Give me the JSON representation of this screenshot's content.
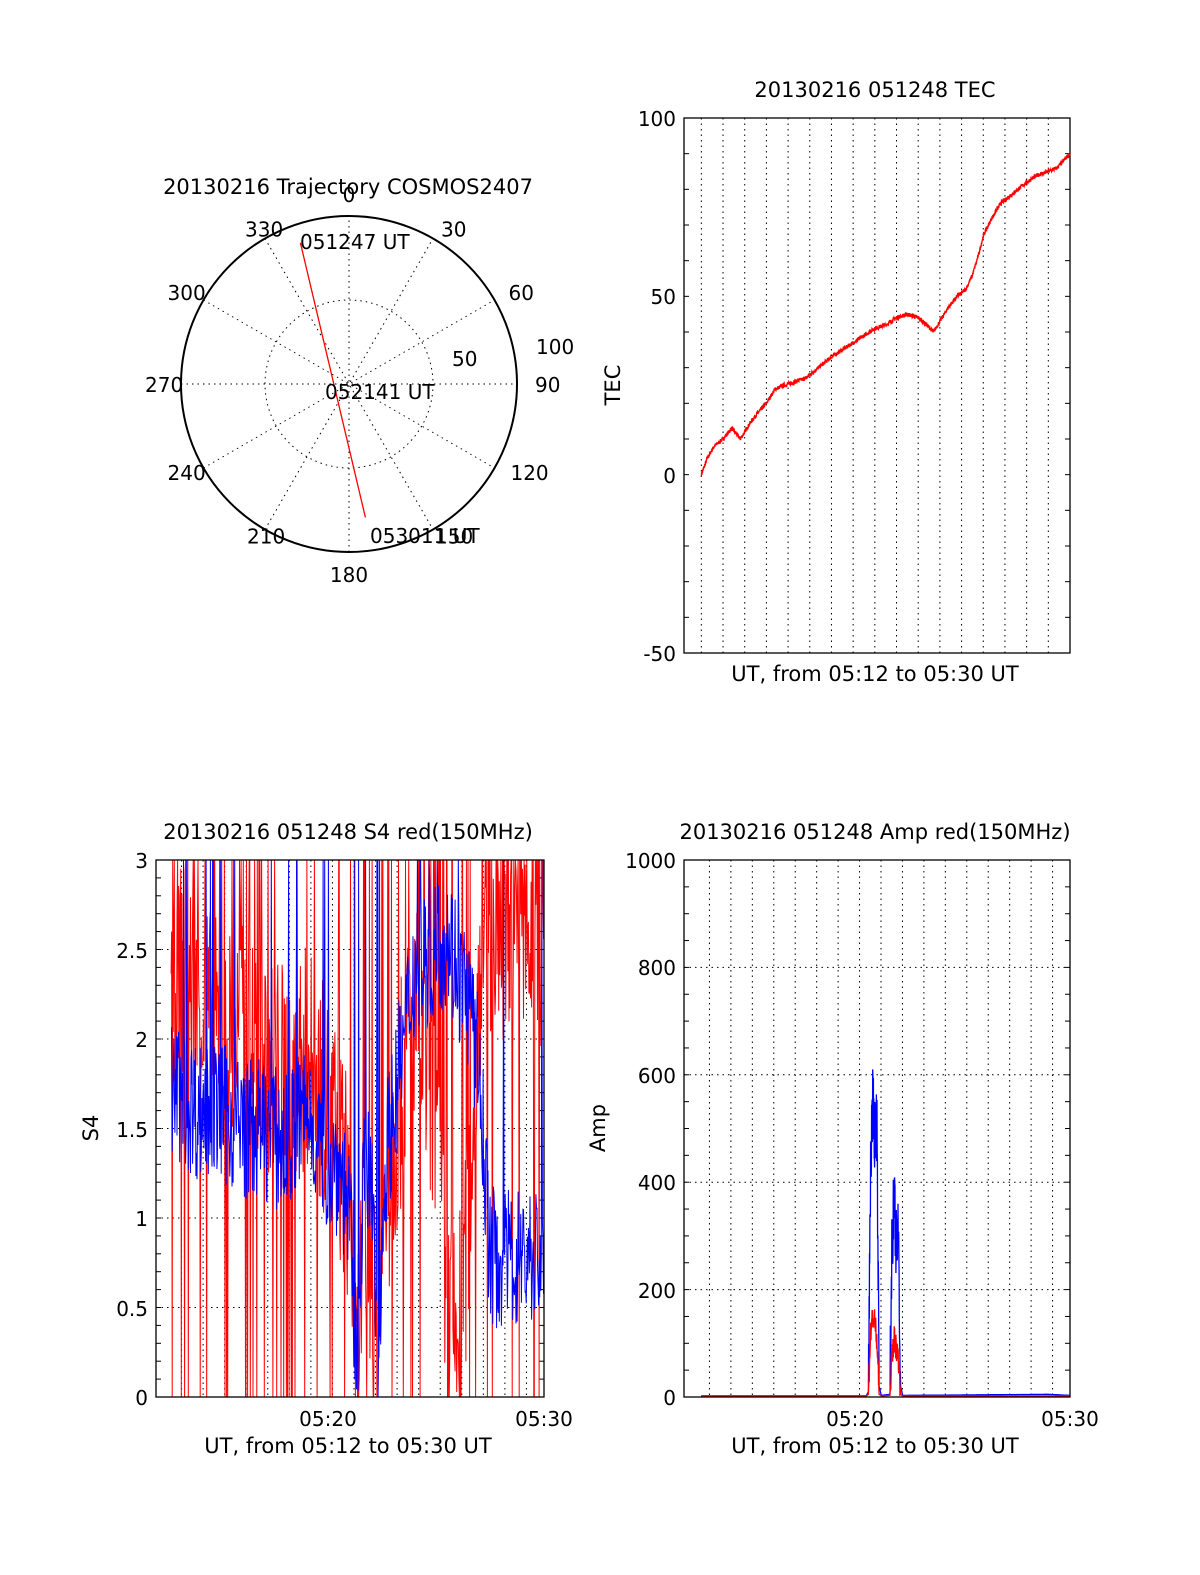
{
  "colors": {
    "red": "#ff0000",
    "blue": "#0000ff",
    "axis": "#000000"
  },
  "chart_data": [
    {
      "id": "trajectory",
      "type": "polar",
      "title": "20130216 Trajectory COSMOS2407",
      "angle_labels": [
        "0",
        "30",
        "60",
        "90",
        "120",
        "150",
        "180",
        "210",
        "240",
        "270",
        "300",
        "330"
      ],
      "radial_labels": [
        "50",
        "100"
      ],
      "time_labels": {
        "start": "051247 UT",
        "middle": "052141 UT",
        "end": "053011 UT"
      },
      "track": {
        "series_color": "red",
        "points": [
          {
            "azimuth_deg": 341,
            "elevation_deg": 10
          },
          {
            "azimuth_deg": 330,
            "elevation_deg": 45
          },
          {
            "azimuth_deg": 250,
            "elevation_deg": 85
          },
          {
            "azimuth_deg": 170,
            "elevation_deg": 48
          },
          {
            "azimuth_deg": 173,
            "elevation_deg": 18
          }
        ]
      },
      "grid": "dotted"
    },
    {
      "id": "tec",
      "type": "line",
      "title": "20130216 051248 TEC",
      "xlabel": "UT, from 05:12 to 05:30 UT",
      "ylabel": "TEC",
      "x_range_min": [
        13.0,
        30.0
      ],
      "ylim": [
        -50,
        100
      ],
      "yticks": [
        "-50",
        "0",
        "50",
        "100"
      ],
      "xticks": [],
      "grid": "dotted vertical every minute",
      "series": [
        {
          "color": "red",
          "x_min": [
            13.0,
            13.3,
            13.6,
            14.0,
            14.4,
            14.8,
            15.3,
            15.7,
            16.0,
            16.4,
            16.8,
            17.3,
            17.8,
            18.2,
            18.6,
            19.0,
            19.5,
            20.0,
            20.5,
            21.0,
            21.5,
            22.0,
            22.5,
            23.0,
            23.4,
            23.7,
            24.0,
            24.4,
            24.8,
            25.2,
            25.5,
            25.8,
            26.0,
            26.4,
            26.8,
            27.2,
            27.6,
            28.0,
            28.5,
            29.0,
            29.4,
            29.7,
            30.0
          ],
          "y": [
            0,
            5,
            8,
            10,
            13,
            10,
            15,
            18,
            20,
            24,
            25,
            26,
            27,
            29,
            31,
            33,
            35,
            37,
            39,
            41,
            42,
            44,
            45,
            44,
            42,
            40,
            43,
            47,
            50,
            52,
            56,
            62,
            67,
            72,
            76,
            78,
            80,
            82,
            84,
            85,
            86,
            88,
            90
          ]
        }
      ]
    },
    {
      "id": "s4",
      "type": "line",
      "title": "20130216 051248 S4 red(150MHz)",
      "xlabel": "UT, from 05:12 to 05:30 UT",
      "ylabel": "S4",
      "x_range_min": [
        12.0,
        30.0
      ],
      "ylim": [
        0,
        3
      ],
      "yticks": [
        "0",
        "0.5",
        "1",
        "1.5",
        "2",
        "2.5",
        "3"
      ],
      "xticks": [
        {
          "at": 20,
          "label": "05:20"
        },
        {
          "at": 30,
          "label": "05:30"
        }
      ],
      "grid": "dotted",
      "series": [
        {
          "color": "red",
          "style": "noisy, frequent spikes to 0 and 3",
          "x_min": [
            12.0,
            13.0,
            14.0,
            15.0,
            16.0,
            17.0,
            18.0,
            19.0,
            20.0,
            20.5,
            21.0,
            21.3,
            21.6,
            22.0,
            22.3,
            22.6,
            23.0,
            24.0,
            25.0,
            25.5,
            26.0,
            26.5,
            27.0,
            28.0,
            29.0,
            30.0
          ],
          "y": [
            2.2,
            2.4,
            2.2,
            2.0,
            2.0,
            1.9,
            1.8,
            1.9,
            1.6,
            1.4,
            1.1,
            0.08,
            0.9,
            0.8,
            0.07,
            0.9,
            1.4,
            2.2,
            1.5,
            0.4,
            0.3,
            1.0,
            2.4,
            2.6,
            2.6,
            2.4
          ]
        },
        {
          "color": "blue",
          "style": "noisy",
          "x_min": [
            12.0,
            13.0,
            14.0,
            15.0,
            16.0,
            17.0,
            18.0,
            19.0,
            20.0,
            20.5,
            21.0,
            21.3,
            21.6,
            22.0,
            22.3,
            22.6,
            23.0,
            24.0,
            25.0,
            25.5,
            26.0,
            26.5,
            27.0,
            27.5,
            28.0,
            29.0,
            30.0
          ],
          "y": [
            1.8,
            1.7,
            1.6,
            1.6,
            1.5,
            1.5,
            1.4,
            1.6,
            1.3,
            1.3,
            1.0,
            0.1,
            1.2,
            1.2,
            0.1,
            1.3,
            1.6,
            2.4,
            2.5,
            2.6,
            2.4,
            2.2,
            1.8,
            0.8,
            0.75,
            0.8,
            0.78
          ]
        }
      ]
    },
    {
      "id": "amp",
      "type": "line",
      "title": "20130216 051248 Amp red(150MHz)",
      "xlabel": "UT, from 05:12 to 05:30 UT",
      "ylabel": "Amp",
      "x_range_min": [
        12.0,
        30.0
      ],
      "ylim": [
        0,
        1000
      ],
      "yticks": [
        "0",
        "200",
        "400",
        "600",
        "800",
        "1000"
      ],
      "xticks": [
        {
          "at": 20,
          "label": "05:20"
        },
        {
          "at": 30,
          "label": "05:30"
        }
      ],
      "grid": "dotted",
      "series": [
        {
          "color": "red",
          "x_min": [
            12.0,
            20.5,
            20.6,
            20.7,
            20.8,
            20.9,
            21.0,
            21.1,
            21.2,
            21.6,
            21.7,
            21.8,
            21.9,
            22.0,
            22.1,
            22.2,
            30.0
          ],
          "y": [
            2,
            2,
            5,
            120,
            150,
            140,
            100,
            5,
            2,
            3,
            80,
            110,
            90,
            75,
            5,
            2,
            2
          ]
        },
        {
          "color": "blue",
          "x_min": [
            12.0,
            20.5,
            20.6,
            20.7,
            20.8,
            20.9,
            21.0,
            21.1,
            21.2,
            21.6,
            21.7,
            21.8,
            21.9,
            22.0,
            22.1,
            22.2,
            29.0,
            30.0
          ],
          "y": [
            2,
            2,
            10,
            440,
            540,
            490,
            510,
            20,
            3,
            5,
            300,
            360,
            280,
            300,
            20,
            3,
            5,
            3
          ]
        }
      ]
    }
  ]
}
